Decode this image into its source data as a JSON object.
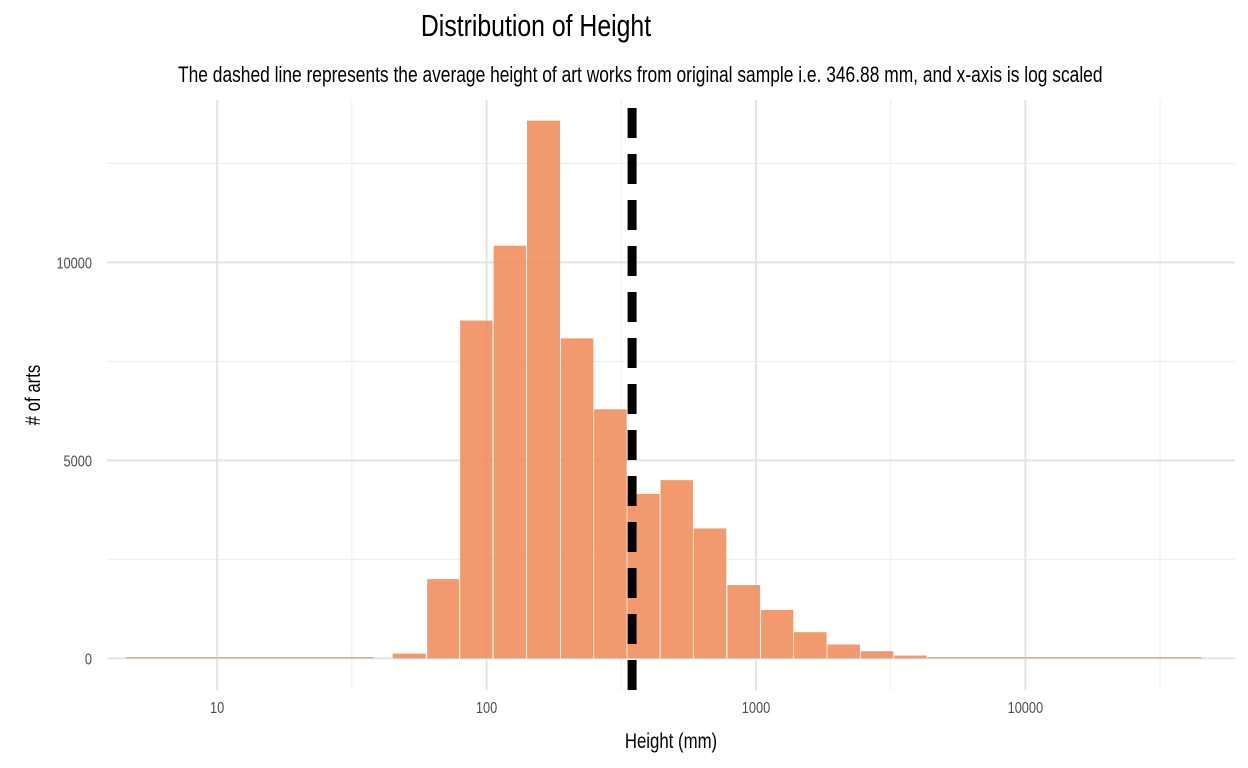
{
  "chart_data": {
    "type": "bar",
    "title": "Distribution of Height",
    "subtitle": "The dashed line represents the average height of art works from original sample i.e. 346.88 mm, and x-axis is log scaled",
    "xlabel": "Height (mm)",
    "ylabel": "# of arts",
    "x_scale": "log10",
    "xlim": [
      3.9,
      60000
    ],
    "ylim": [
      -800,
      14100
    ],
    "x_ticks": [
      10,
      100,
      1000,
      10000
    ],
    "x_tick_labels": [
      "10",
      "100",
      "1000",
      "10000"
    ],
    "y_ticks": [
      0,
      5000,
      10000
    ],
    "y_tick_labels": [
      "0",
      "5000",
      "10000"
    ],
    "grid": true,
    "mean_line": {
      "x": 346.88,
      "style": "dashed",
      "color": "#000000"
    },
    "bar_color": "#f08c5a",
    "bins": [
      {
        "x0": 4.6,
        "x1": 6.0,
        "count": 20
      },
      {
        "x0": 6.0,
        "x1": 7.8,
        "count": 10
      },
      {
        "x0": 7.8,
        "x1": 10.1,
        "count": 10
      },
      {
        "x0": 10.1,
        "x1": 13.2,
        "count": 10
      },
      {
        "x0": 13.2,
        "x1": 17.2,
        "count": 5
      },
      {
        "x0": 17.2,
        "x1": 22.4,
        "count": 5
      },
      {
        "x0": 22.4,
        "x1": 29.2,
        "count": 5
      },
      {
        "x0": 29.2,
        "x1": 38.1,
        "count": 10
      },
      {
        "x0": 44.8,
        "x1": 59.5,
        "count": 120
      },
      {
        "x0": 60.2,
        "x1": 79.0,
        "count": 2000
      },
      {
        "x0": 79.8,
        "x1": 105.1,
        "count": 8530
      },
      {
        "x0": 106.2,
        "x1": 140.3,
        "count": 10420
      },
      {
        "x0": 141.2,
        "x1": 187.5,
        "count": 13580
      },
      {
        "x0": 188.7,
        "x1": 249.1,
        "count": 8080
      },
      {
        "x0": 250.8,
        "x1": 331.2,
        "count": 6290
      },
      {
        "x0": 333.3,
        "x1": 439.0,
        "count": 4150
      },
      {
        "x0": 442.4,
        "x1": 583.5,
        "count": 4500
      },
      {
        "x0": 587.5,
        "x1": 775.8,
        "count": 3280
      },
      {
        "x0": 783.0,
        "x1": 1036.0,
        "count": 1850
      },
      {
        "x0": 1043.0,
        "x1": 1376.0,
        "count": 1220
      },
      {
        "x0": 1385.0,
        "x1": 1829.0,
        "count": 660
      },
      {
        "x0": 1841.0,
        "x1": 2432.0,
        "count": 350
      },
      {
        "x0": 2448.0,
        "x1": 3238.0,
        "count": 180
      },
      {
        "x0": 3258.0,
        "x1": 4303.0,
        "count": 70
      },
      {
        "x0": 4331.0,
        "x1": 5720.0,
        "count": 20
      },
      {
        "x0": 5720.0,
        "x1": 7600.0,
        "count": 10
      },
      {
        "x0": 7600.0,
        "x1": 10100.0,
        "count": 5
      },
      {
        "x0": 10100.0,
        "x1": 13400.0,
        "count": 5
      },
      {
        "x0": 13400.0,
        "x1": 17800.0,
        "count": 5
      },
      {
        "x0": 17800.0,
        "x1": 23700.0,
        "count": 5
      },
      {
        "x0": 23700.0,
        "x1": 31500.0,
        "count": 5
      },
      {
        "x0": 31500.0,
        "x1": 45000.0,
        "count": 20
      }
    ]
  }
}
